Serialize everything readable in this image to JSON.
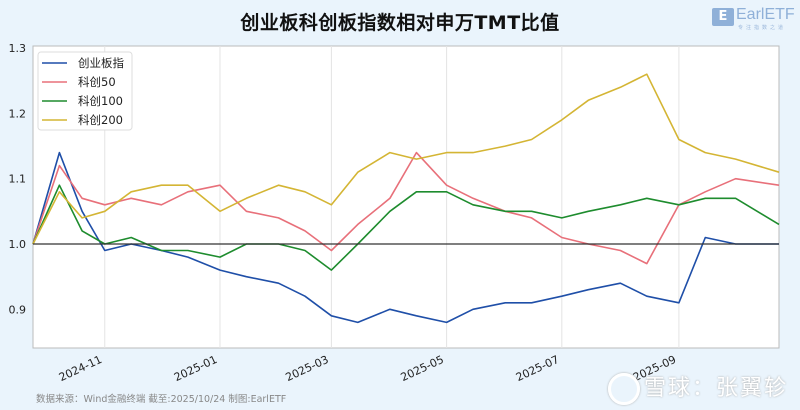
{
  "header": {
    "title": "创业板科创板指数相对申万TMT比值",
    "logo_text": "EarlETF",
    "logo_sub": "专注指数之道"
  },
  "footer": {
    "source": "数据来源：Wind金融终端 截至:2025/10/24 制图:EarlETF",
    "watermark": "雪球：张翼轸"
  },
  "chart_data": {
    "type": "line",
    "title": "创业板科创板指数相对申万TMT比值",
    "xlabel": "",
    "ylabel": "",
    "ylim": [
      0.85,
      1.3
    ],
    "yticks": [
      0.9,
      1.0,
      1.1,
      1.2,
      1.3
    ],
    "xticks": [
      "2024-11",
      "2025-01",
      "2025-03",
      "2025-05",
      "2025-07",
      "2025-09"
    ],
    "xrange": [
      "2024-09-24",
      "2025-10-24"
    ],
    "reference_line": 1.0,
    "grid": "vertical",
    "legend_position": "upper left",
    "x": [
      "2024-09-24",
      "2024-10-08",
      "2024-10-20",
      "2024-11-01",
      "2024-11-15",
      "2024-12-01",
      "2024-12-15",
      "2025-01-01",
      "2025-01-15",
      "2025-02-01",
      "2025-02-15",
      "2025-03-01",
      "2025-03-15",
      "2025-04-01",
      "2025-04-15",
      "2025-05-01",
      "2025-05-15",
      "2025-06-01",
      "2025-06-15",
      "2025-07-01",
      "2025-07-15",
      "2025-08-01",
      "2025-08-15",
      "2025-09-01",
      "2025-09-15",
      "2025-10-01",
      "2025-10-24"
    ],
    "series": [
      {
        "name": "创业板指",
        "color": "#1f4fa8",
        "values": [
          1.0,
          1.14,
          1.05,
          0.99,
          1.0,
          0.99,
          0.98,
          0.96,
          0.95,
          0.94,
          0.92,
          0.89,
          0.88,
          0.9,
          0.89,
          0.88,
          0.9,
          0.91,
          0.91,
          0.92,
          0.93,
          0.94,
          0.92,
          0.91,
          1.01,
          1.0,
          1.0
        ]
      },
      {
        "name": "科创50",
        "color": "#e8707a",
        "values": [
          1.0,
          1.12,
          1.07,
          1.06,
          1.07,
          1.06,
          1.08,
          1.09,
          1.05,
          1.04,
          1.02,
          0.99,
          1.03,
          1.07,
          1.14,
          1.09,
          1.07,
          1.05,
          1.04,
          1.01,
          1.0,
          0.99,
          0.97,
          1.06,
          1.08,
          1.1,
          1.09
        ]
      },
      {
        "name": "科创100",
        "color": "#1e8c2e",
        "values": [
          1.0,
          1.09,
          1.02,
          1.0,
          1.01,
          0.99,
          0.99,
          0.98,
          1.0,
          1.0,
          0.99,
          0.96,
          1.0,
          1.05,
          1.08,
          1.08,
          1.06,
          1.05,
          1.05,
          1.04,
          1.05,
          1.06,
          1.07,
          1.06,
          1.07,
          1.07,
          1.03
        ]
      },
      {
        "name": "科创200",
        "color": "#d4b534",
        "values": [
          1.0,
          1.08,
          1.04,
          1.05,
          1.08,
          1.09,
          1.09,
          1.05,
          1.07,
          1.09,
          1.08,
          1.06,
          1.11,
          1.14,
          1.13,
          1.14,
          1.14,
          1.15,
          1.16,
          1.19,
          1.22,
          1.24,
          1.26,
          1.16,
          1.14,
          1.13,
          1.11
        ]
      }
    ]
  }
}
